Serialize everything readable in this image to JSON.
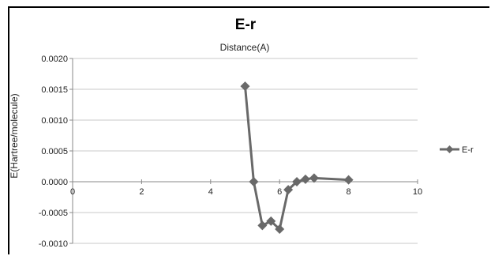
{
  "chart_data": {
    "type": "line",
    "title": "E-r",
    "xlabel": "Distance(A)",
    "ylabel": "E(Hartree/molecule)",
    "xlim": [
      0,
      10
    ],
    "ylim": [
      -0.001,
      0.002
    ],
    "x_ticks": [
      "0",
      "2",
      "4",
      "6",
      "8",
      "10"
    ],
    "y_ticks": [
      "0.0020",
      "0.0015",
      "0.0010",
      "0.0005",
      "0.0000",
      "-0.0005",
      "-0.0010"
    ],
    "grid": "horizontal",
    "legend_position": "right",
    "series": [
      {
        "name": "E-r",
        "color": "#696969",
        "marker": "diamond",
        "x": [
          5.0,
          5.25,
          5.5,
          5.75,
          6.0,
          6.25,
          6.5,
          6.75,
          7.0,
          8.0
        ],
        "y": [
          0.00155,
          0.0,
          -0.00071,
          -0.00064,
          -0.00077,
          -0.00013,
          0.0,
          4e-05,
          6e-05,
          3e-05
        ]
      }
    ]
  }
}
